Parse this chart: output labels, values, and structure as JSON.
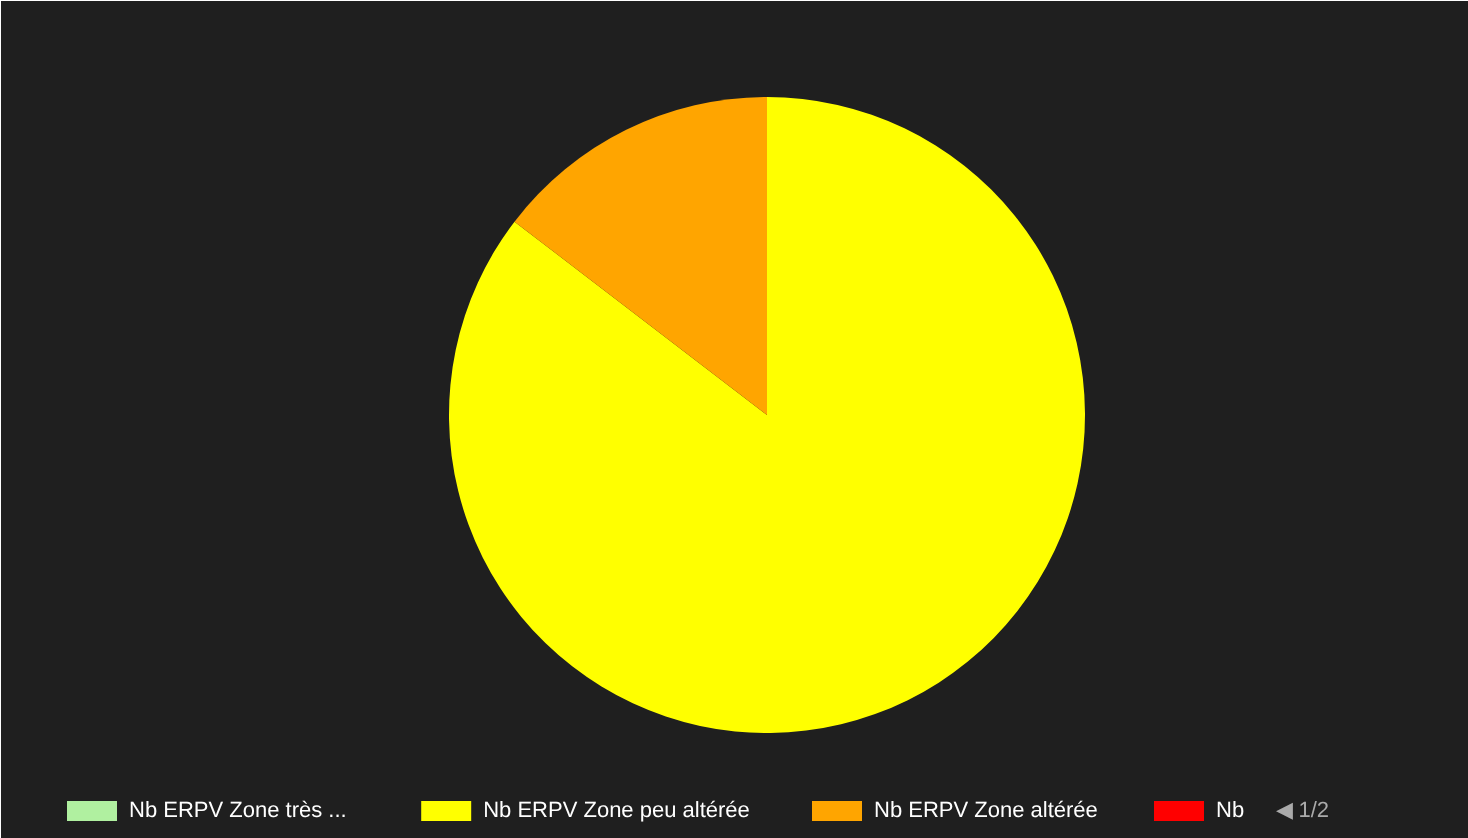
{
  "chart_data": {
    "type": "pie",
    "categories": [
      "Nb ERPV Zone très ...",
      "Nb ERPV Zone peu altérée",
      "Nb ERPV Zone altérée",
      "Nb"
    ],
    "values": [
      0,
      85.4,
      14.6,
      0
    ],
    "colors": [
      "#b0f0a0",
      "#ffff00",
      "#ffa500",
      "#ff0000"
    ],
    "legend": "bottom",
    "annotations": [
      "◀ 1/2"
    ]
  }
}
